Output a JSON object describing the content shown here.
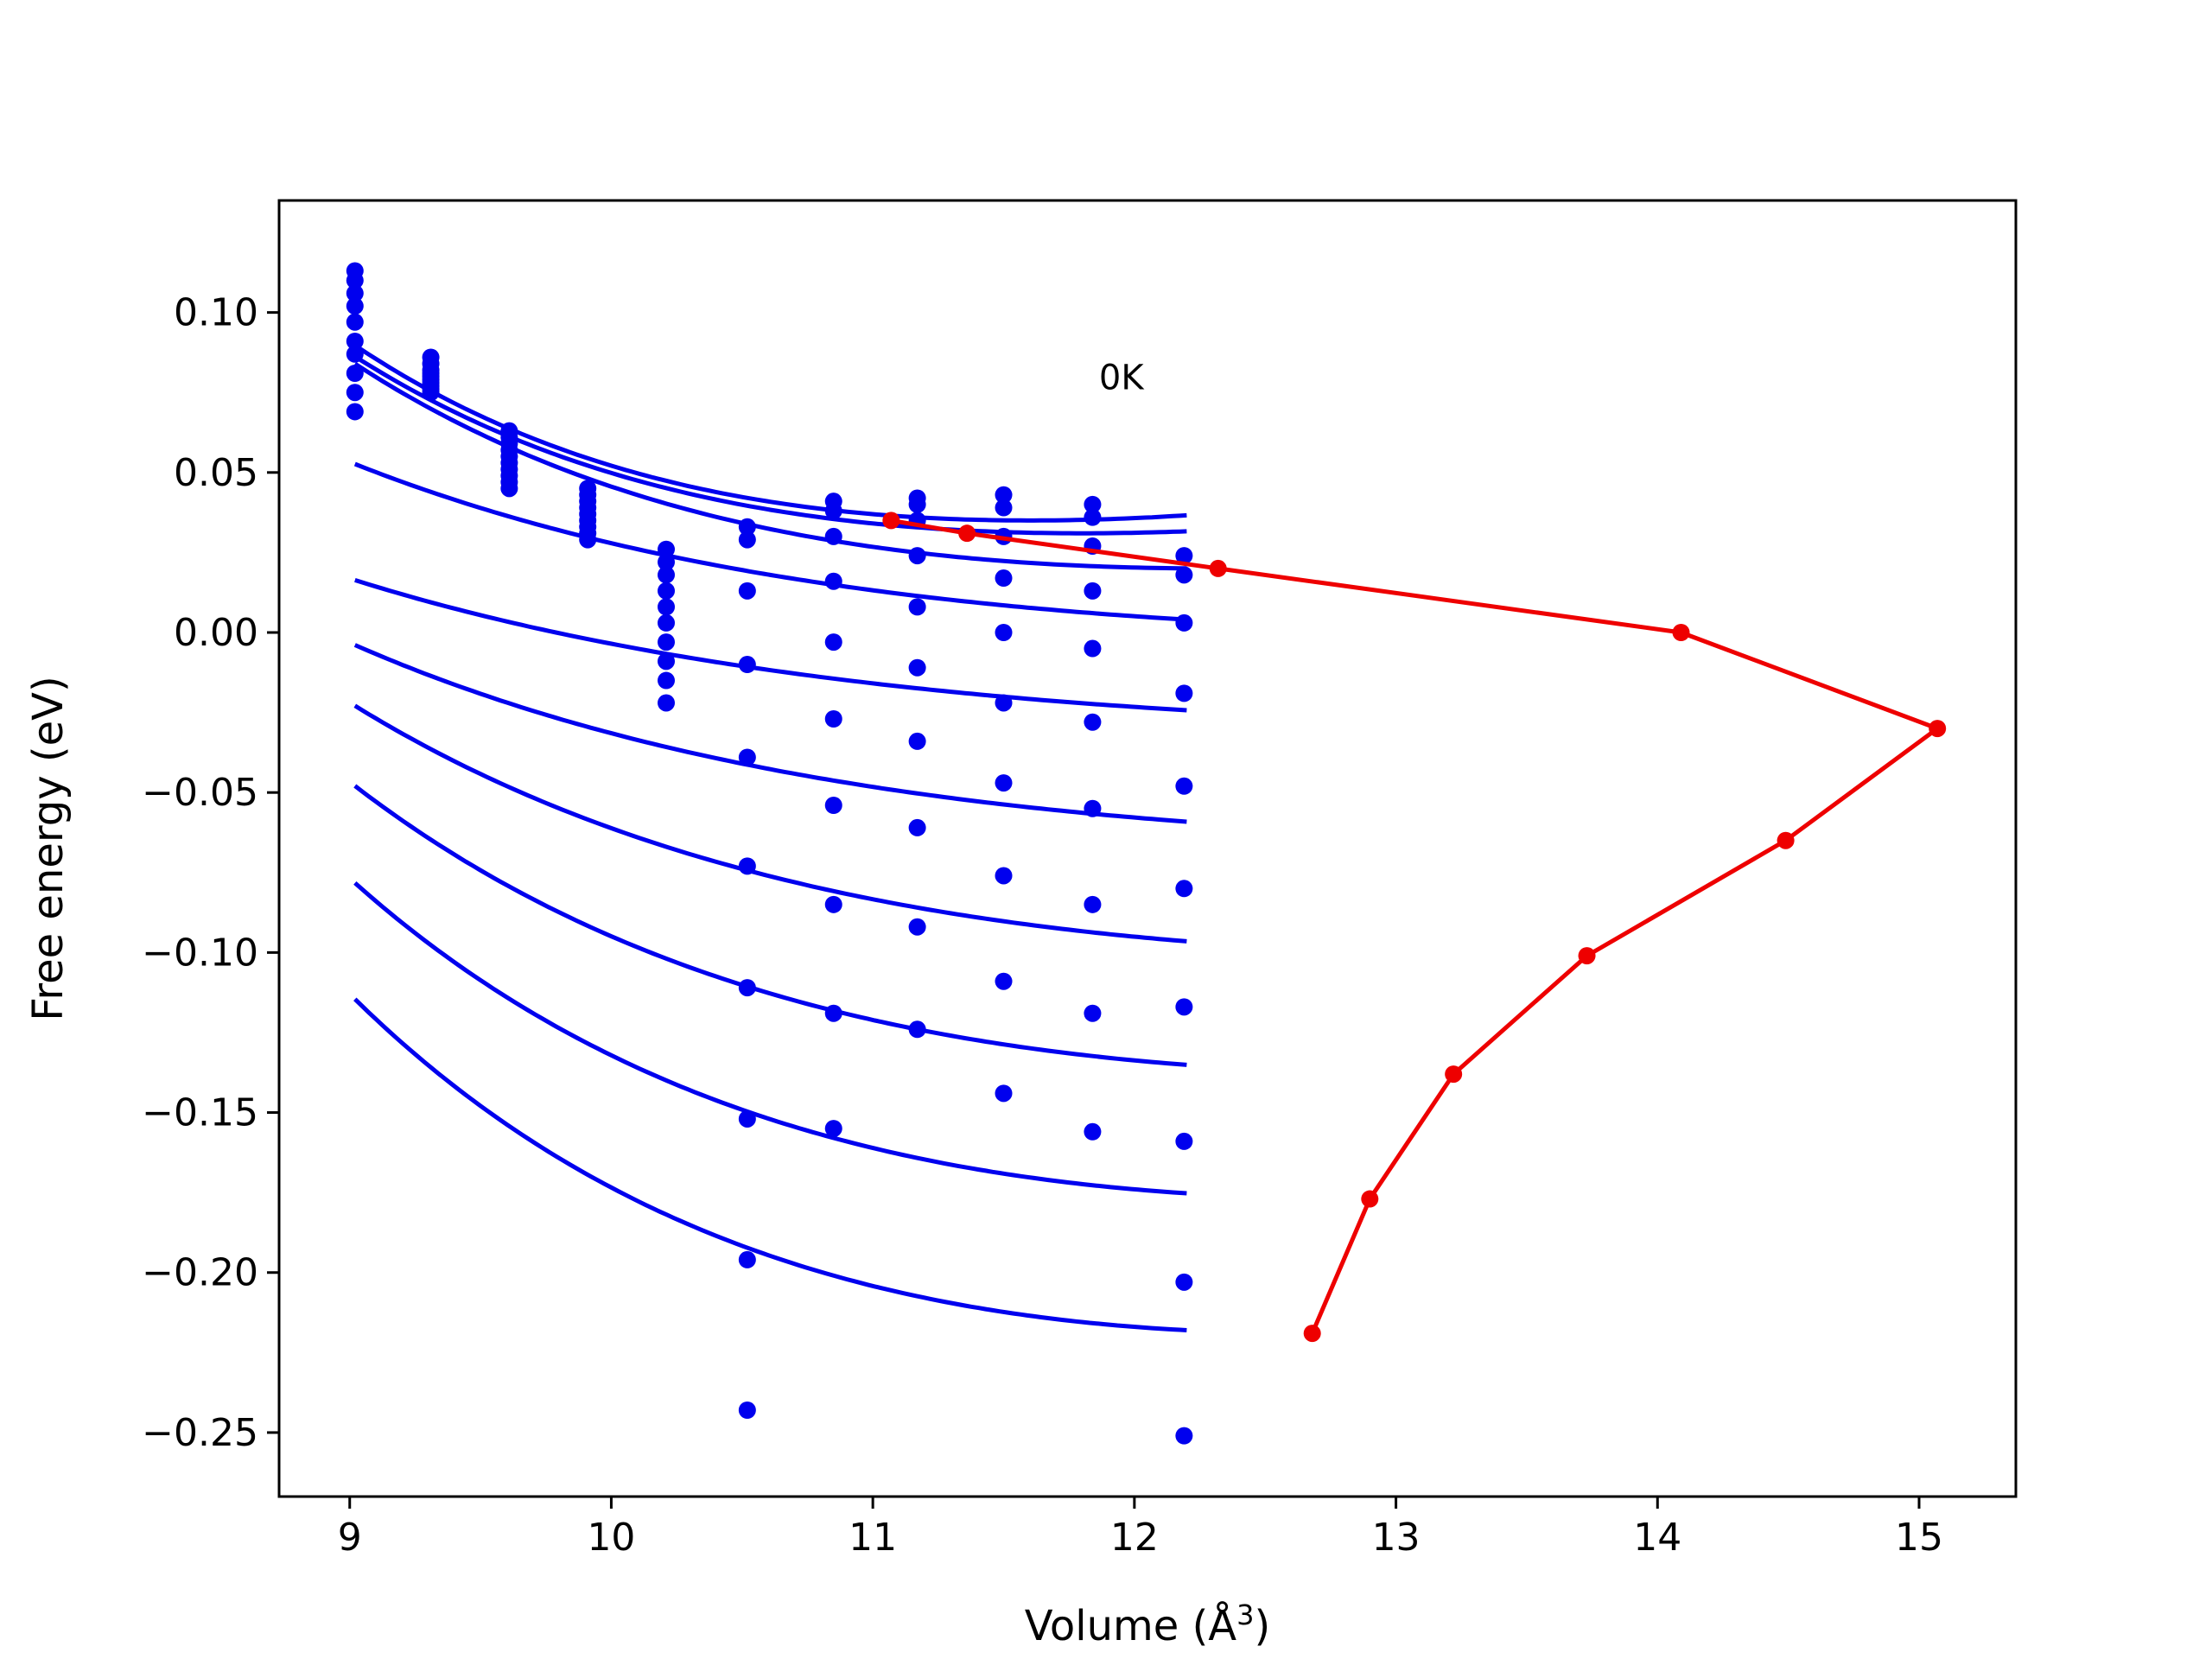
{
  "chart_data": {
    "type": "scatter",
    "title": "",
    "xlabel": "Volume (Å",
    "xlabel_sup": "3",
    "xlabel_end": ")",
    "ylabel": "Free energy (eV)",
    "xlim": [
      8.73,
      15.37
    ],
    "ylim": [
      -0.27,
      0.135
    ],
    "xticks": [
      9,
      10,
      11,
      12,
      13,
      14,
      15
    ],
    "yticks": [
      0.1,
      0.05,
      0.0,
      -0.05,
      -0.1,
      -0.15,
      -0.2,
      -0.25
    ],
    "ytick_labels": [
      "0.10",
      "0.05",
      "0.00",
      "−0.05",
      "−0.10",
      "−0.15",
      "−0.20",
      "−0.25"
    ],
    "grid": false,
    "annotation": {
      "text": "0K",
      "x": 11.95,
      "y": 0.076
    },
    "colors": {
      "fits": "#0000ee",
      "points": "#0000ee",
      "min_path": "#ee0000"
    },
    "points": [
      [
        9.02,
        0.113
      ],
      [
        9.02,
        0.11
      ],
      [
        9.02,
        0.106
      ],
      [
        9.02,
        0.102
      ],
      [
        9.02,
        0.097
      ],
      [
        9.02,
        0.091
      ],
      [
        9.02,
        0.087
      ],
      [
        9.02,
        0.081
      ],
      [
        9.02,
        0.075
      ],
      [
        9.02,
        0.069
      ],
      [
        9.31,
        0.086
      ],
      [
        9.31,
        0.084
      ],
      [
        9.31,
        0.082
      ],
      [
        9.31,
        0.081
      ],
      [
        9.31,
        0.08
      ],
      [
        9.31,
        0.079
      ],
      [
        9.31,
        0.078
      ],
      [
        9.31,
        0.077
      ],
      [
        9.31,
        0.076
      ],
      [
        9.31,
        0.075
      ],
      [
        9.61,
        0.063
      ],
      [
        9.61,
        0.061
      ],
      [
        9.61,
        0.059
      ],
      [
        9.61,
        0.057
      ],
      [
        9.61,
        0.055
      ],
      [
        9.61,
        0.053
      ],
      [
        9.61,
        0.051
      ],
      [
        9.61,
        0.049
      ],
      [
        9.61,
        0.047
      ],
      [
        9.61,
        0.045
      ],
      [
        9.91,
        0.045
      ],
      [
        9.91,
        0.043
      ],
      [
        9.91,
        0.041
      ],
      [
        9.91,
        0.039
      ],
      [
        9.91,
        0.037
      ],
      [
        9.91,
        0.035
      ],
      [
        9.91,
        0.033
      ],
      [
        9.91,
        0.031
      ],
      [
        9.91,
        0.029
      ],
      [
        10.21,
        0.026
      ],
      [
        10.21,
        0.022
      ],
      [
        10.21,
        0.018
      ],
      [
        10.21,
        0.013
      ],
      [
        10.21,
        0.008
      ],
      [
        10.21,
        0.003
      ],
      [
        10.21,
        -0.003
      ],
      [
        10.21,
        -0.009
      ],
      [
        10.21,
        -0.015
      ],
      [
        10.21,
        -0.022
      ],
      [
        10.52,
        0.033
      ],
      [
        10.52,
        0.029
      ],
      [
        10.52,
        0.013
      ],
      [
        10.52,
        -0.01
      ],
      [
        10.52,
        -0.039
      ],
      [
        10.52,
        -0.073
      ],
      [
        10.52,
        -0.111
      ],
      [
        10.52,
        -0.152
      ],
      [
        10.52,
        -0.196
      ],
      [
        10.52,
        -0.243
      ],
      [
        10.85,
        0.041
      ],
      [
        10.85,
        0.038
      ],
      [
        10.85,
        0.03
      ],
      [
        10.85,
        0.016
      ],
      [
        10.85,
        -0.003
      ],
      [
        10.85,
        -0.027
      ],
      [
        10.85,
        -0.054
      ],
      [
        10.85,
        -0.085
      ],
      [
        10.85,
        -0.119
      ],
      [
        10.85,
        -0.155
      ],
      [
        11.17,
        0.042
      ],
      [
        11.17,
        0.04
      ],
      [
        11.17,
        0.035
      ],
      [
        11.17,
        0.024
      ],
      [
        11.17,
        0.008
      ],
      [
        11.17,
        -0.011
      ],
      [
        11.17,
        -0.034
      ],
      [
        11.17,
        -0.061
      ],
      [
        11.17,
        -0.092
      ],
      [
        11.17,
        -0.124
      ],
      [
        11.5,
        0.043
      ],
      [
        11.5,
        0.039
      ],
      [
        11.5,
        0.03
      ],
      [
        11.5,
        0.017
      ],
      [
        11.5,
        0.0
      ],
      [
        11.5,
        -0.022
      ],
      [
        11.5,
        -0.047
      ],
      [
        11.5,
        -0.076
      ],
      [
        11.5,
        -0.109
      ],
      [
        11.5,
        -0.144
      ],
      [
        11.84,
        0.04
      ],
      [
        11.84,
        0.036
      ],
      [
        11.84,
        0.027
      ],
      [
        11.84,
        0.013
      ],
      [
        11.84,
        -0.005
      ],
      [
        11.84,
        -0.028
      ],
      [
        11.84,
        -0.055
      ],
      [
        11.84,
        -0.085
      ],
      [
        11.84,
        -0.119
      ],
      [
        11.84,
        -0.156
      ],
      [
        12.19,
        0.024
      ],
      [
        12.19,
        0.018
      ],
      [
        12.19,
        0.003
      ],
      [
        12.19,
        -0.019
      ],
      [
        12.19,
        -0.048
      ],
      [
        12.19,
        -0.08
      ],
      [
        12.19,
        -0.117
      ],
      [
        12.19,
        -0.159
      ],
      [
        12.19,
        -0.203
      ],
      [
        12.19,
        -0.251
      ]
    ],
    "fit_curves": [
      {
        "x0": 11.6,
        "y0": 0.035,
        "a": 0.015
      },
      {
        "x0": 11.8,
        "y0": 0.031,
        "a": 0.0135
      },
      {
        "x0": 12.3,
        "y0": 0.02,
        "a": 0.0122
      },
      {
        "x0": 14.1,
        "y0": 0.0,
        "a": 0.0055
      },
      {
        "x0": 15.07,
        "y0": -0.03,
        "a": 0.0039
      },
      {
        "x0": 14.5,
        "y0": -0.065,
        "a": 0.0058
      },
      {
        "x0": 13.73,
        "y0": -0.101,
        "a": 0.009
      },
      {
        "x0": 13.22,
        "y0": -0.138,
        "a": 0.0121
      },
      {
        "x0": 12.9,
        "y0": -0.177,
        "a": 0.0148
      },
      {
        "x0": 12.68,
        "y0": -0.219,
        "a": 0.017
      }
    ],
    "fit_x_range": [
      9.02,
      12.2
    ],
    "min_path": [
      [
        11.07,
        0.035
      ],
      [
        11.36,
        0.031
      ],
      [
        12.32,
        0.02
      ],
      [
        14.09,
        0.0
      ],
      [
        15.07,
        -0.03
      ],
      [
        14.49,
        -0.065
      ],
      [
        13.73,
        -0.101
      ],
      [
        13.22,
        -0.138
      ],
      [
        12.9,
        -0.177
      ],
      [
        12.68,
        -0.219
      ]
    ]
  }
}
